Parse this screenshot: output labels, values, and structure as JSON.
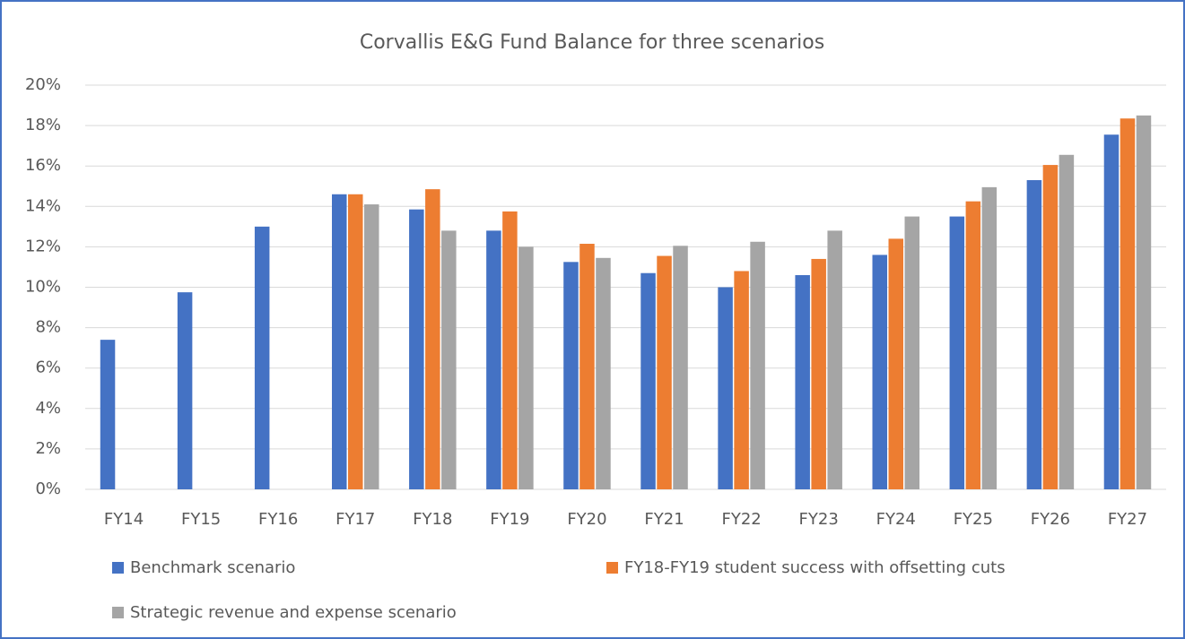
{
  "chart_data": {
    "type": "bar",
    "title": "Corvallis E&G Fund Balance for three scenarios",
    "categories": [
      "FY14",
      "FY15",
      "FY16",
      "FY17",
      "FY18",
      "FY19",
      "FY20",
      "FY21",
      "FY22",
      "FY23",
      "FY24",
      "FY25",
      "FY26",
      "FY27"
    ],
    "series": [
      {
        "name": "Benchmark scenario",
        "color": "#4472c4",
        "values": [
          7.4,
          9.75,
          13.0,
          14.6,
          13.85,
          12.8,
          11.25,
          10.7,
          10.0,
          10.6,
          11.6,
          13.5,
          15.3,
          17.55
        ]
      },
      {
        "name": "FY18-FY19 student success with offsetting cuts",
        "color": "#ed7d31",
        "values": [
          null,
          null,
          null,
          14.6,
          14.85,
          13.75,
          12.15,
          11.55,
          10.8,
          11.4,
          12.4,
          14.25,
          16.05,
          18.35
        ]
      },
      {
        "name": "Strategic revenue and expense scenario",
        "color": "#a5a5a5",
        "values": [
          null,
          null,
          null,
          14.1,
          12.8,
          12.0,
          11.45,
          12.05,
          12.25,
          12.8,
          13.5,
          14.95,
          16.55,
          18.5
        ]
      }
    ],
    "ylim": [
      0,
      20
    ],
    "yticks": [
      {
        "value": 0,
        "label": "0%"
      },
      {
        "value": 2,
        "label": "2%"
      },
      {
        "value": 4,
        "label": "4%"
      },
      {
        "value": 6,
        "label": "6%"
      },
      {
        "value": 8,
        "label": "8%"
      },
      {
        "value": 10,
        "label": "10%"
      },
      {
        "value": 12,
        "label": "12%"
      },
      {
        "value": 14,
        "label": "14%"
      },
      {
        "value": 16,
        "label": "16%"
      },
      {
        "value": 18,
        "label": "18%"
      },
      {
        "value": 20,
        "label": "20%"
      }
    ],
    "grid": true,
    "legend": "bottom"
  }
}
